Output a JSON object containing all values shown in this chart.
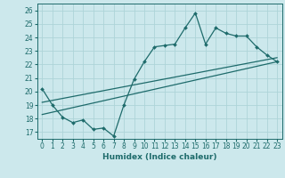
{
  "xlabel": "Humidex (Indice chaleur)",
  "xlim": [
    -0.5,
    23.5
  ],
  "ylim": [
    16.5,
    26.5
  ],
  "xticks": [
    0,
    1,
    2,
    3,
    4,
    5,
    6,
    7,
    8,
    9,
    10,
    11,
    12,
    13,
    14,
    15,
    16,
    17,
    18,
    19,
    20,
    21,
    22,
    23
  ],
  "yticks": [
    17,
    18,
    19,
    20,
    21,
    22,
    23,
    24,
    25,
    26
  ],
  "bg_color": "#cce8ec",
  "grid_color": "#aed4d8",
  "line_color": "#1e6b6b",
  "data_x": [
    0,
    1,
    2,
    3,
    4,
    5,
    6,
    7,
    8,
    9,
    10,
    11,
    12,
    13,
    14,
    15,
    16,
    17,
    18,
    19,
    20,
    21,
    22,
    23
  ],
  "data_y": [
    20.2,
    19.0,
    18.1,
    17.7,
    17.9,
    17.2,
    17.3,
    16.7,
    19.0,
    20.9,
    22.2,
    23.3,
    23.4,
    23.5,
    24.7,
    25.8,
    23.5,
    24.7,
    24.3,
    24.1,
    24.1,
    23.3,
    22.7,
    22.2
  ],
  "trend1_x": [
    0,
    23
  ],
  "trend1_y": [
    18.3,
    22.2
  ],
  "trend2_x": [
    0,
    23
  ],
  "trend2_y": [
    19.2,
    22.5
  ],
  "tick_fontsize": 5.5,
  "xlabel_fontsize": 6.5
}
